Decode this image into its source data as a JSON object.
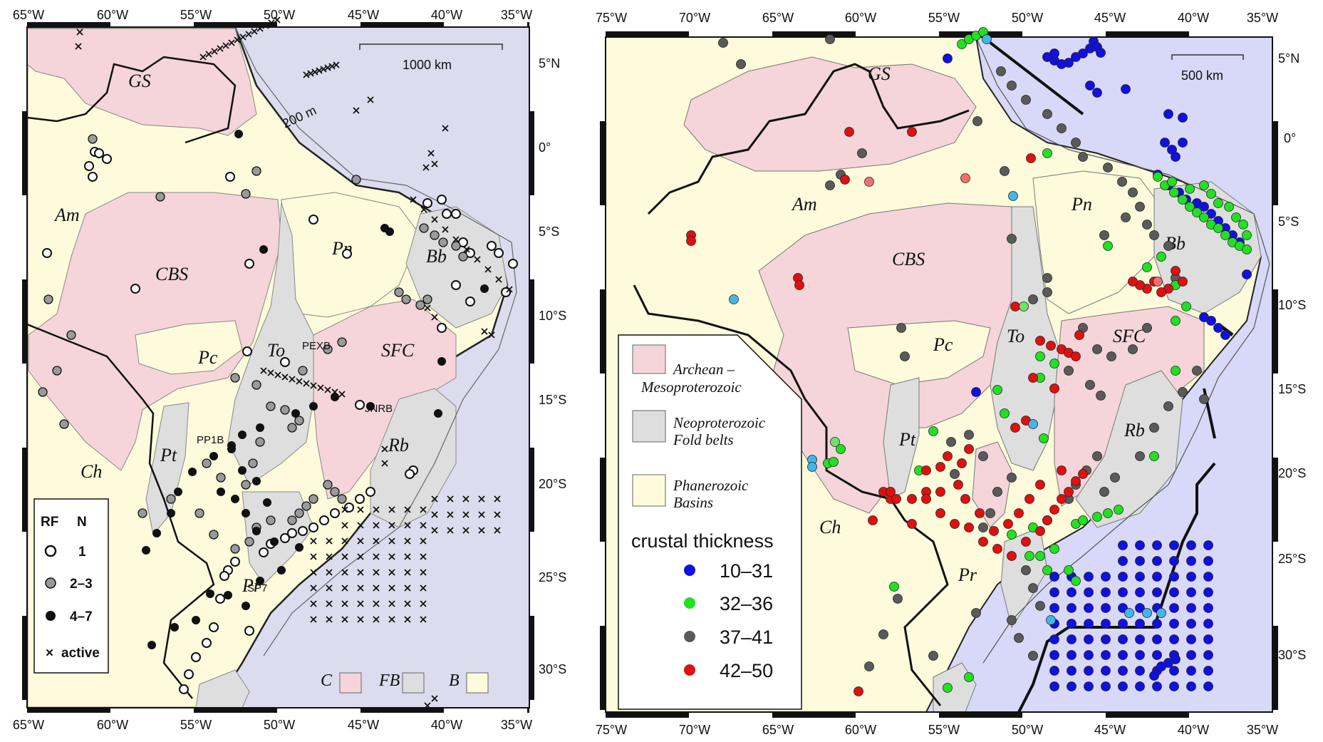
{
  "left_map": {
    "lon_labels": [
      "65°W",
      "60°W",
      "55°W",
      "50°W",
      "45°W",
      "40°W",
      "35°W"
    ],
    "lat_labels": [
      "5°N",
      "0°",
      "5°S",
      "10°S",
      "15°S",
      "20°S",
      "25°S",
      "30°S"
    ],
    "scale_label": "1000 km",
    "isobath_label": "200 m",
    "provinces": {
      "gs": "GS",
      "am": "Am",
      "cbs": "CBS",
      "pc": "Pc",
      "pn": "Pn",
      "to": "To",
      "sfc": "SFC",
      "bb": "Bb",
      "pt": "Pt",
      "rb": "Rb",
      "pr": "Pr",
      "ch": "Ch"
    },
    "stations": {
      "pexb": "PEXB",
      "jnrb": "JNRB",
      "pp1b": "PP1B",
      "sp7": "SP7"
    },
    "legend": {
      "h1": "RF",
      "h2": "N",
      "row1": "1",
      "row2": "2–3",
      "row3": "4–7",
      "row4": "active"
    },
    "bottom_legend": {
      "c": "C",
      "fb": "FB",
      "b": "B"
    },
    "colors": {
      "archean": "#f5d5d9",
      "foldbelt": "#dedede",
      "basin": "#fdfbdb",
      "ocean": "#dddcee"
    }
  },
  "right_map": {
    "lon_labels": [
      "75°W",
      "70°W",
      "65°W",
      "60°W",
      "55°W",
      "50°W",
      "45°W",
      "40°W",
      "35°W"
    ],
    "lat_labels": [
      "5°N",
      "0°",
      "5°S",
      "10°S",
      "15°S",
      "20°S",
      "25°S",
      "30°S"
    ],
    "scale_label": "500 km",
    "provinces": {
      "gs": "GS",
      "am": "Am",
      "cbs": "CBS",
      "pc": "Pc",
      "pn": "Pn",
      "to": "To",
      "sfc": "SFC",
      "bb": "Bb",
      "pt": "Pt",
      "rb": "Rb",
      "pr": "Pr",
      "ch": "Ch"
    },
    "legend": {
      "unit1a": "Archean –",
      "unit1b": "Mesoproterozoic",
      "unit2a": "Neoproterozoic",
      "unit2b": "Fold belts",
      "unit3a": "Phanerozoic",
      "unit3b": "Basins",
      "title": "crustal thickness",
      "c1": "10–31",
      "c2": "32–36",
      "c3": "37–41",
      "c4": "42–50"
    },
    "colors": {
      "c1": "#1010e0",
      "c2": "#22e022",
      "c3": "#5a5a5a",
      "c4": "#e01010",
      "ocean": "#d8d8f8"
    }
  }
}
